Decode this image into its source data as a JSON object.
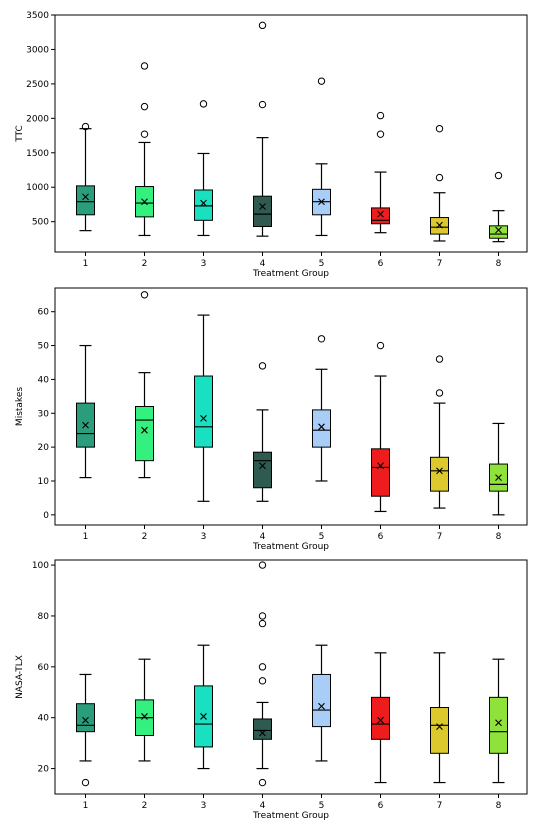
{
  "chart_data": [
    {
      "type": "box",
      "xlabel": "Treatment Group",
      "ylabel": "TTC",
      "ylim": [
        60,
        3500
      ],
      "yticks": [
        500,
        1000,
        1500,
        2000,
        2500,
        3000,
        3500
      ],
      "categories": [
        "1",
        "2",
        "3",
        "4",
        "5",
        "6",
        "7",
        "8"
      ],
      "colors": [
        "#2a9d7c",
        "#33f07f",
        "#18e0c0",
        "#2f5a4f",
        "#a8cef8",
        "#ee1c1c",
        "#dcc92e",
        "#8ee23a"
      ],
      "groups": [
        {
          "whisker_low": 370,
          "q1": 600,
          "median": 790,
          "q3": 1020,
          "whisker_high": 1850,
          "mean": 860,
          "outliers": [
            1880
          ]
        },
        {
          "whisker_low": 300,
          "q1": 570,
          "median": 770,
          "q3": 1010,
          "whisker_high": 1650,
          "mean": 790,
          "outliers": [
            1770,
            2170,
            2760
          ]
        },
        {
          "whisker_low": 300,
          "q1": 520,
          "median": 730,
          "q3": 960,
          "whisker_high": 1490,
          "mean": 770,
          "outliers": [
            2210
          ]
        },
        {
          "whisker_low": 290,
          "q1": 430,
          "median": 610,
          "q3": 870,
          "whisker_high": 1720,
          "mean": 720,
          "outliers": [
            2200,
            3350
          ]
        },
        {
          "whisker_low": 300,
          "q1": 600,
          "median": 790,
          "q3": 970,
          "whisker_high": 1340,
          "mean": 790,
          "outliers": [
            2540
          ]
        },
        {
          "whisker_low": 340,
          "q1": 470,
          "median": 520,
          "q3": 700,
          "whisker_high": 1220,
          "mean": 610,
          "outliers": [
            1770,
            2040
          ]
        },
        {
          "whisker_low": 220,
          "q1": 320,
          "median": 420,
          "q3": 560,
          "whisker_high": 920,
          "mean": 450,
          "outliers": [
            1140,
            1850
          ]
        },
        {
          "whisker_low": 210,
          "q1": 260,
          "median": 320,
          "q3": 440,
          "whisker_high": 660,
          "mean": 380,
          "outliers": [
            1170
          ]
        }
      ]
    },
    {
      "type": "box",
      "xlabel": "Treatment Group",
      "ylabel": "Mistakes",
      "ylim": [
        -3,
        67
      ],
      "yticks": [
        0,
        10,
        20,
        30,
        40,
        50,
        60
      ],
      "categories": [
        "1",
        "2",
        "3",
        "4",
        "5",
        "6",
        "7",
        "8"
      ],
      "colors": [
        "#2a9d7c",
        "#33f07f",
        "#18e0c0",
        "#2f5a4f",
        "#a8cef8",
        "#ee1c1c",
        "#dcc92e",
        "#8ee23a"
      ],
      "groups": [
        {
          "whisker_low": 11,
          "q1": 20,
          "median": 24,
          "q3": 33,
          "whisker_high": 50,
          "mean": 26.5,
          "outliers": []
        },
        {
          "whisker_low": 11,
          "q1": 16,
          "median": 28,
          "q3": 32,
          "whisker_high": 42,
          "mean": 25,
          "outliers": [
            65
          ]
        },
        {
          "whisker_low": 4,
          "q1": 20,
          "median": 26,
          "q3": 41,
          "whisker_high": 59,
          "mean": 28.5,
          "outliers": []
        },
        {
          "whisker_low": 4,
          "q1": 8,
          "median": 16,
          "q3": 18.5,
          "whisker_high": 31,
          "mean": 14.5,
          "outliers": [
            44
          ]
        },
        {
          "whisker_low": 10,
          "q1": 20,
          "median": 25,
          "q3": 31,
          "whisker_high": 43,
          "mean": 26,
          "outliers": [
            52
          ]
        },
        {
          "whisker_low": 1,
          "q1": 5.5,
          "median": 14,
          "q3": 19.5,
          "whisker_high": 41,
          "mean": 14.5,
          "outliers": [
            50
          ]
        },
        {
          "whisker_low": 2,
          "q1": 7,
          "median": 13,
          "q3": 17,
          "whisker_high": 33,
          "mean": 13,
          "outliers": [
            36,
            46
          ]
        },
        {
          "whisker_low": 0,
          "q1": 7,
          "median": 9,
          "q3": 15,
          "whisker_high": 27,
          "mean": 11,
          "outliers": []
        }
      ]
    },
    {
      "type": "box",
      "xlabel": "Treatment Group",
      "ylabel": "NASA-TLX",
      "ylim": [
        10,
        102
      ],
      "yticks": [
        20,
        40,
        60,
        80,
        100
      ],
      "categories": [
        "1",
        "2",
        "3",
        "4",
        "5",
        "6",
        "7",
        "8"
      ],
      "colors": [
        "#2a9d7c",
        "#33f07f",
        "#18e0c0",
        "#2f5a4f",
        "#a8cef8",
        "#ee1c1c",
        "#dcc92e",
        "#8ee23a"
      ],
      "groups": [
        {
          "whisker_low": 23,
          "q1": 34.5,
          "median": 37,
          "q3": 45.5,
          "whisker_high": 57,
          "mean": 39,
          "outliers": [
            14.5
          ]
        },
        {
          "whisker_low": 23,
          "q1": 33,
          "median": 40,
          "q3": 47,
          "whisker_high": 63,
          "mean": 40.5,
          "outliers": []
        },
        {
          "whisker_low": 20,
          "q1": 28.5,
          "median": 37.5,
          "q3": 52.5,
          "whisker_high": 68.5,
          "mean": 40.5,
          "outliers": []
        },
        {
          "whisker_low": 20,
          "q1": 31.5,
          "median": 35,
          "q3": 39.5,
          "whisker_high": 46,
          "mean": 34,
          "outliers": [
            14.5,
            54.5,
            60,
            77,
            80,
            100
          ]
        },
        {
          "whisker_low": 23,
          "q1": 36.5,
          "median": 43,
          "q3": 57,
          "whisker_high": 68.5,
          "mean": 44.5,
          "outliers": []
        },
        {
          "whisker_low": 14.5,
          "q1": 31.5,
          "median": 37.5,
          "q3": 48,
          "whisker_high": 65.5,
          "mean": 39,
          "outliers": []
        },
        {
          "whisker_low": 14.5,
          "q1": 26,
          "median": 37,
          "q3": 44,
          "whisker_high": 65.5,
          "mean": 36.5,
          "outliers": []
        },
        {
          "whisker_low": 14.5,
          "q1": 26,
          "median": 34.5,
          "q3": 48,
          "whisker_high": 63,
          "mean": 38,
          "outliers": []
        }
      ]
    }
  ]
}
